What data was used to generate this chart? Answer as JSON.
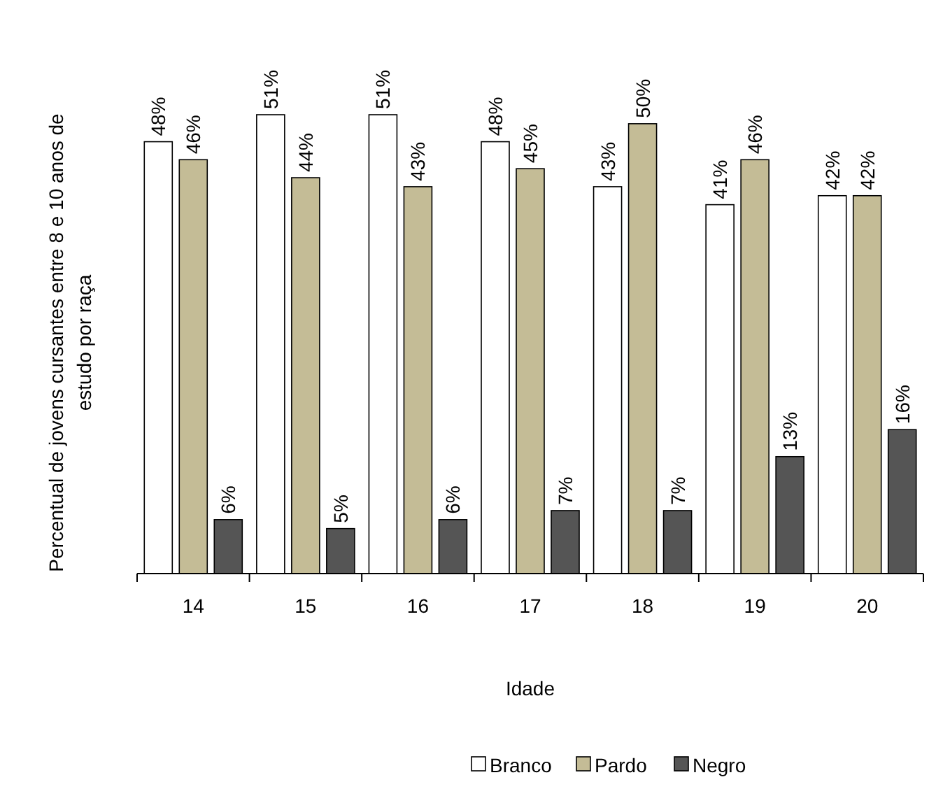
{
  "chart_data": {
    "type": "bar",
    "xlabel": "Idade",
    "ylabel": "Percentual de jovens cursantes entre 8 e 10 anos de estudo por raça",
    "categories": [
      "14",
      "15",
      "16",
      "17",
      "18",
      "19",
      "20"
    ],
    "legend": "bottom",
    "series": [
      {
        "name": "Branco",
        "color": "#ffffff",
        "values": [
          48,
          51,
          51,
          48,
          43,
          41,
          42
        ],
        "value_labels": [
          "48%",
          "51%",
          "51%",
          "48%",
          "43%",
          "41%",
          "42%"
        ]
      },
      {
        "name": "Pardo",
        "color": "#c4bc96",
        "values": [
          46,
          44,
          43,
          45,
          50,
          46,
          42
        ],
        "value_labels": [
          "46%",
          "44%",
          "43%",
          "45%",
          "50%",
          "46%",
          "42%"
        ]
      },
      {
        "name": "Negro",
        "color": "#555555",
        "values": [
          6,
          5,
          6,
          7,
          7,
          13,
          16
        ],
        "value_labels": [
          "6%",
          "5%",
          "6%",
          "7%",
          "7%",
          "13%",
          "16%"
        ]
      }
    ]
  }
}
